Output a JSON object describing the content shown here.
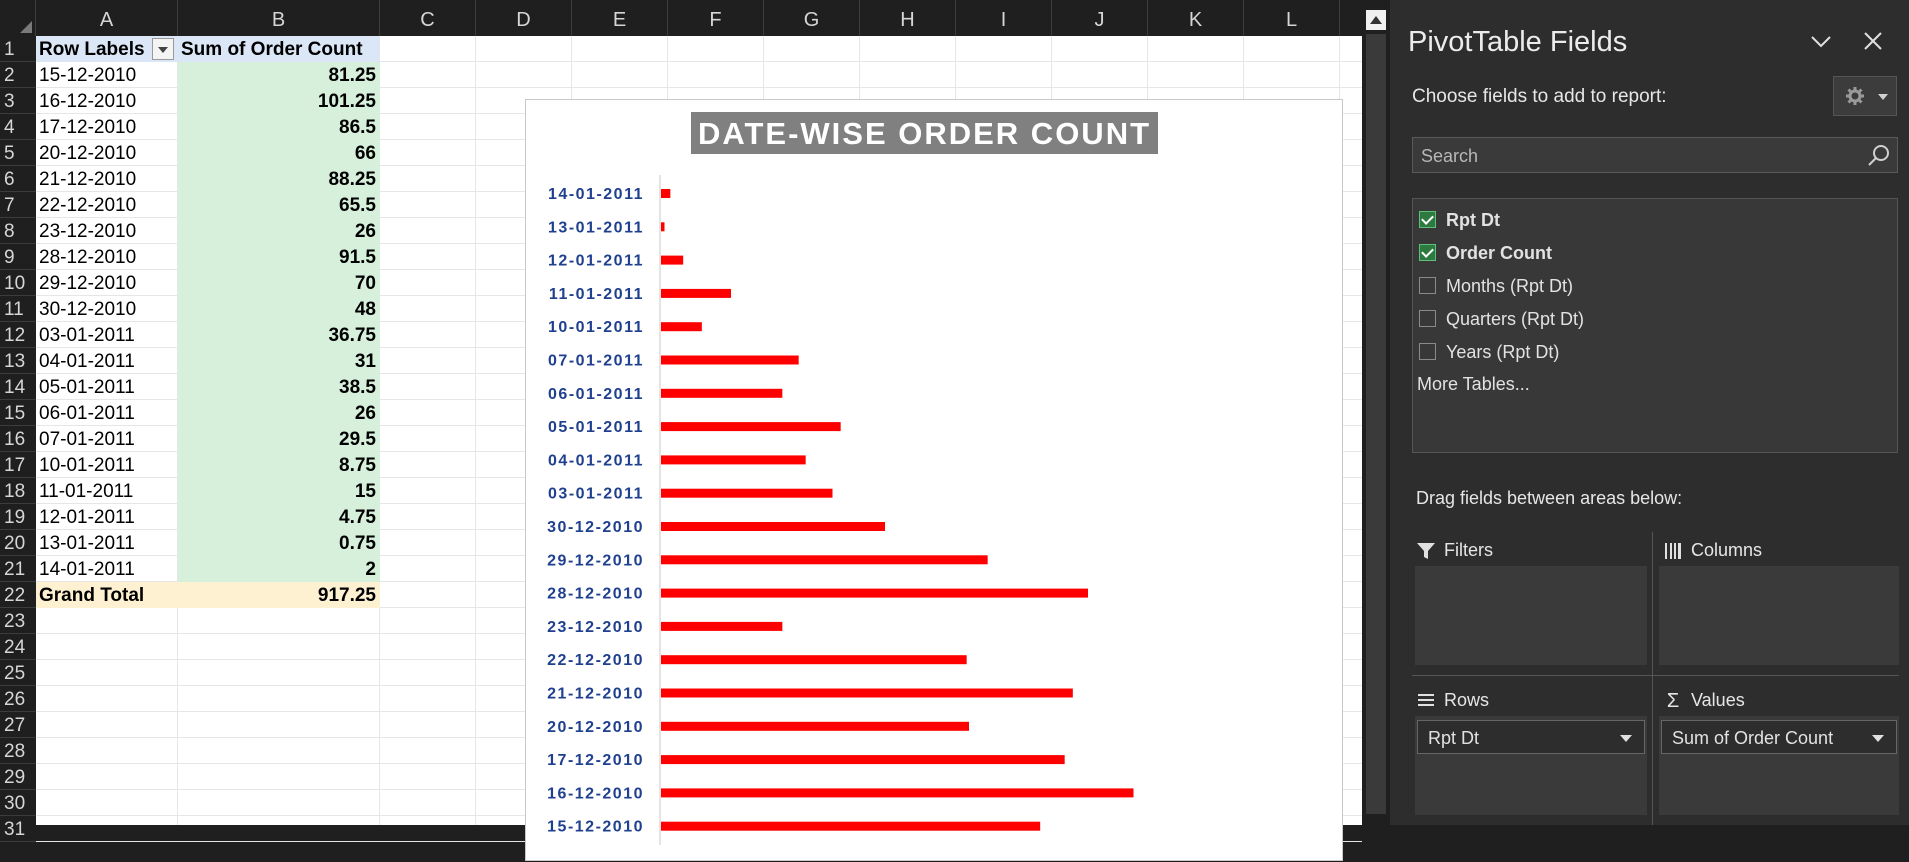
{
  "sheet": {
    "columns": [
      "A",
      "B",
      "C",
      "D",
      "E",
      "F",
      "G",
      "H",
      "I",
      "J",
      "K",
      "L"
    ],
    "rows": [
      "1",
      "2",
      "3",
      "4",
      "5",
      "6",
      "7",
      "8",
      "9",
      "10",
      "11",
      "12",
      "13",
      "14",
      "15",
      "16",
      "17",
      "18",
      "19",
      "20",
      "21",
      "22",
      "23",
      "24",
      "25",
      "26",
      "27",
      "28",
      "29",
      "30",
      "31"
    ],
    "pivot": {
      "header_a": "Row Labels",
      "header_b": "Sum of Order Count",
      "labels": [
        "15-12-2010",
        "16-12-2010",
        "17-12-2010",
        "20-12-2010",
        "21-12-2010",
        "22-12-2010",
        "23-12-2010",
        "28-12-2010",
        "29-12-2010",
        "30-12-2010",
        "03-01-2011",
        "04-01-2011",
        "05-01-2011",
        "06-01-2011",
        "07-01-2011",
        "10-01-2011",
        "11-01-2011",
        "12-01-2011",
        "13-01-2011",
        "14-01-2011"
      ],
      "values": [
        "81.25",
        "101.25",
        "86.5",
        "66",
        "88.25",
        "65.5",
        "26",
        "91.5",
        "70",
        "48",
        "36.75",
        "31",
        "38.5",
        "26",
        "29.5",
        "8.75",
        "15",
        "4.75",
        "0.75",
        "2"
      ],
      "total_label": "Grand Total",
      "total_value": "917.25"
    }
  },
  "chart_data": {
    "type": "bar",
    "orientation": "horizontal",
    "title": "DATE-WISE ORDER COUNT",
    "categories": [
      "14-01-2011",
      "13-01-2011",
      "12-01-2011",
      "11-01-2011",
      "10-01-2011",
      "07-01-2011",
      "06-01-2011",
      "05-01-2011",
      "04-01-2011",
      "03-01-2011",
      "30-12-2010",
      "29-12-2010",
      "28-12-2010",
      "23-12-2010",
      "22-12-2010",
      "21-12-2010",
      "20-12-2010",
      "17-12-2010",
      "16-12-2010",
      "15-12-2010"
    ],
    "values": [
      2,
      0.75,
      4.75,
      15,
      8.75,
      29.5,
      26,
      38.5,
      31,
      36.75,
      48,
      70,
      91.5,
      26,
      65.5,
      88.25,
      66,
      86.5,
      101.25,
      81.25
    ],
    "xlim": [
      0,
      105
    ],
    "bar_color": "#ff0000",
    "label_color": "#1f3f8f",
    "grid": false
  },
  "panel": {
    "title": "PivotTable Fields",
    "choose_label": "Choose fields to add to report:",
    "search_placeholder": "Search",
    "fields": [
      {
        "label": "Rpt Dt",
        "checked": true
      },
      {
        "label": "Order Count",
        "checked": true
      },
      {
        "label": "Months (Rpt Dt)",
        "checked": false
      },
      {
        "label": "Quarters (Rpt Dt)",
        "checked": false
      },
      {
        "label": "Years (Rpt Dt)",
        "checked": false
      }
    ],
    "more_tables": "More Tables...",
    "drag_label": "Drag fields between areas below:",
    "areas": {
      "filters": "Filters",
      "columns": "Columns",
      "rows": "Rows",
      "values": "Values",
      "rows_field": "Rpt Dt",
      "values_field": "Sum of Order Count"
    }
  }
}
